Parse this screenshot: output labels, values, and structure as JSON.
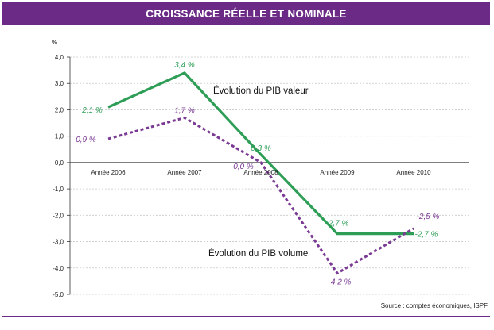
{
  "chart_data": {
    "type": "line",
    "title": "CROISSANCE RÉELLE ET NOMINALE",
    "ylabel": "%",
    "xlabel": "",
    "ylim": [
      -5.0,
      4.0
    ],
    "yticks": [
      "4,0",
      "3,0",
      "2,0",
      "1,0",
      "0,0",
      "-1,0",
      "-2,0",
      "-3,0",
      "-4,0",
      "-5,0"
    ],
    "categories": [
      "Année 2006",
      "Année 2007",
      "Année 2008",
      "Année 2009",
      "Année 2010"
    ],
    "grid": true,
    "series": [
      {
        "name": "Évolution du PIB valeur",
        "color": "#2e9e57",
        "style": "solid",
        "values": [
          2.1,
          3.4,
          0.3,
          -2.7,
          -2.7
        ],
        "labels": [
          "2,1 %",
          "3,4 %",
          "0,3 %",
          "-2,7 %",
          "-2,7 %"
        ]
      },
      {
        "name": "Évolution du PIB volume",
        "color": "#7b3a93",
        "style": "dotted",
        "values": [
          0.9,
          1.7,
          0.0,
          -4.2,
          -2.5
        ],
        "labels": [
          "0,9 %",
          "1,7 %",
          "0,0 %",
          "-4,2 %",
          "-2,5 %"
        ]
      }
    ],
    "source": "Source : comptes économiques, ISPF"
  }
}
